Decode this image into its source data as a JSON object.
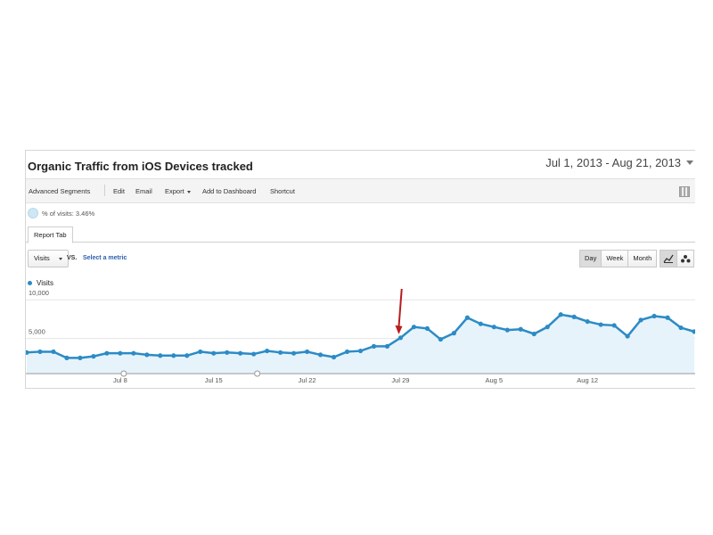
{
  "report": {
    "title": "Organic Traffic from iOS Devices tracked",
    "date_range": "Jul 1, 2013 - Aug 21, 2013"
  },
  "toolbar": {
    "advanced_segments": "Advanced Segments",
    "edit": "Edit",
    "email": "Email",
    "export": "Export",
    "add_to_dashboard": "Add to Dashboard",
    "shortcut": "Shortcut"
  },
  "segment": {
    "label": "% of visits: 3.46%"
  },
  "tabs": {
    "report_tab": "Report Tab"
  },
  "controls": {
    "metric": "Visits",
    "vs": "VS.",
    "select_metric": "Select a metric",
    "granularity": [
      "Day",
      "Week",
      "Month"
    ],
    "active_granularity": "Day"
  },
  "icons": {
    "grid": "grid-icon",
    "line_chart": "line-chart-icon",
    "motion_chart": "motion-chart-icon",
    "annotation_arrow": "arrow-down-icon"
  },
  "colors": {
    "series": "#2c8bc5",
    "area_fill": "#e6f3fb",
    "arrow": "#b81c1c",
    "link": "#2a5db0"
  },
  "chart_data": {
    "type": "area",
    "series": [
      {
        "name": "Visits",
        "values": [
          2500,
          2600,
          2600,
          1800,
          1800,
          2000,
          2400,
          2400,
          2400,
          2200,
          2100,
          2100,
          2100,
          2600,
          2400,
          2500,
          2400,
          2300,
          2700,
          2500,
          2400,
          2600,
          2200,
          1900,
          2600,
          2700,
          3300,
          3300,
          4400,
          5800,
          5600,
          4200,
          5000,
          7000,
          6200,
          5800,
          5400,
          5500,
          4900,
          5800,
          7400,
          7100,
          6500,
          6100,
          6000,
          4600,
          6700,
          7200,
          7000,
          5700,
          5200
        ]
      }
    ],
    "x_start": "Jul 1",
    "x_end": "Aug 20",
    "x_tick_labels": [
      "Jul 8",
      "Jul 15",
      "Jul 22",
      "Jul 29",
      "Aug 5",
      "Aug 12"
    ],
    "y_tick_labels": [
      "10,000",
      "5,000"
    ],
    "ylim": [
      0,
      10000
    ],
    "annotation": {
      "type": "arrow",
      "points_to": "Jul 29"
    },
    "grid": true
  }
}
